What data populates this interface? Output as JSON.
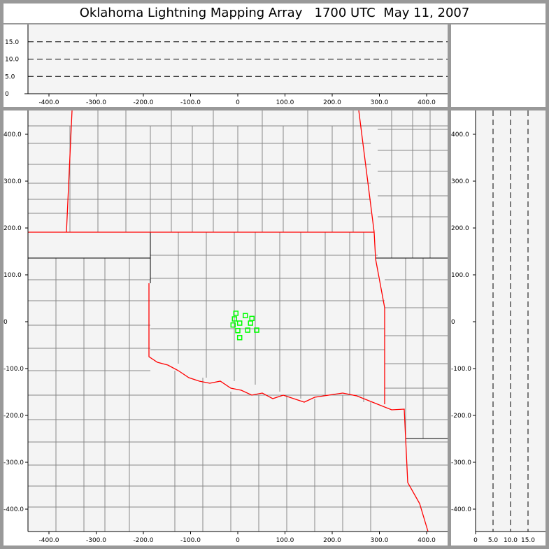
{
  "title": {
    "name": "Oklahoma Lightning Mapping Array",
    "time": "1700 UTC",
    "date": "May 11, 2007"
  },
  "colors": {
    "plot_bg": "#f4f4f4",
    "state_border": "#ff0000",
    "county_border": "#888888",
    "source_marker": "#00ff00"
  },
  "chart_data": [
    {
      "type": "scatter",
      "panel": "plan-view",
      "xlim": [
        -445,
        445
      ],
      "ylim": [
        -447,
        447
      ],
      "x_ticks": [
        "-400.0",
        "-300.0",
        "-200.0",
        "-100.0",
        "0",
        "100.0",
        "200.0",
        "300.0",
        "400.0"
      ],
      "y_ticks": [
        "400.0",
        "300.0",
        "200.0",
        "100.0",
        "0",
        "-100.0",
        "-200.0",
        "-300.0",
        "-400.0"
      ],
      "marker": "hollow-square",
      "points": [
        {
          "x": -4,
          "y": 18
        },
        {
          "x": 16,
          "y": 13
        },
        {
          "x": 30,
          "y": 7
        },
        {
          "x": -7,
          "y": 6
        },
        {
          "x": 4,
          "y": -3
        },
        {
          "x": -10,
          "y": -7
        },
        {
          "x": 27,
          "y": -3
        },
        {
          "x": 0,
          "y": -19
        },
        {
          "x": 21,
          "y": -18
        },
        {
          "x": 40,
          "y": -18
        },
        {
          "x": 4,
          "y": -34
        }
      ]
    },
    {
      "type": "scatter",
      "panel": "east-west-vs-altitude",
      "xlim": [
        -445,
        445
      ],
      "ylim": [
        0,
        20
      ],
      "x_ticks": [
        "-400.0",
        "-300.0",
        "-200.0",
        "-100.0",
        "0",
        "100.0",
        "200.0",
        "300.0",
        "400.0"
      ],
      "y_ticks": [
        "0",
        "5.0",
        "10.0",
        "15.0"
      ],
      "dashed_gridlines": [
        5,
        10,
        15
      ],
      "points": []
    },
    {
      "type": "scatter",
      "panel": "altitude-vs-north-south",
      "xlim": [
        0,
        20
      ],
      "ylim": [
        -447,
        447
      ],
      "x_ticks": [
        "0",
        "5.0",
        "10.0",
        "15.0"
      ],
      "y_ticks": [
        "400.0",
        "300.0",
        "200.0",
        "100.0",
        "0",
        "-100.0",
        "-200.0",
        "-300.0",
        "-400.0"
      ],
      "dashed_gridlines": [
        5,
        10,
        15
      ],
      "points": []
    }
  ]
}
